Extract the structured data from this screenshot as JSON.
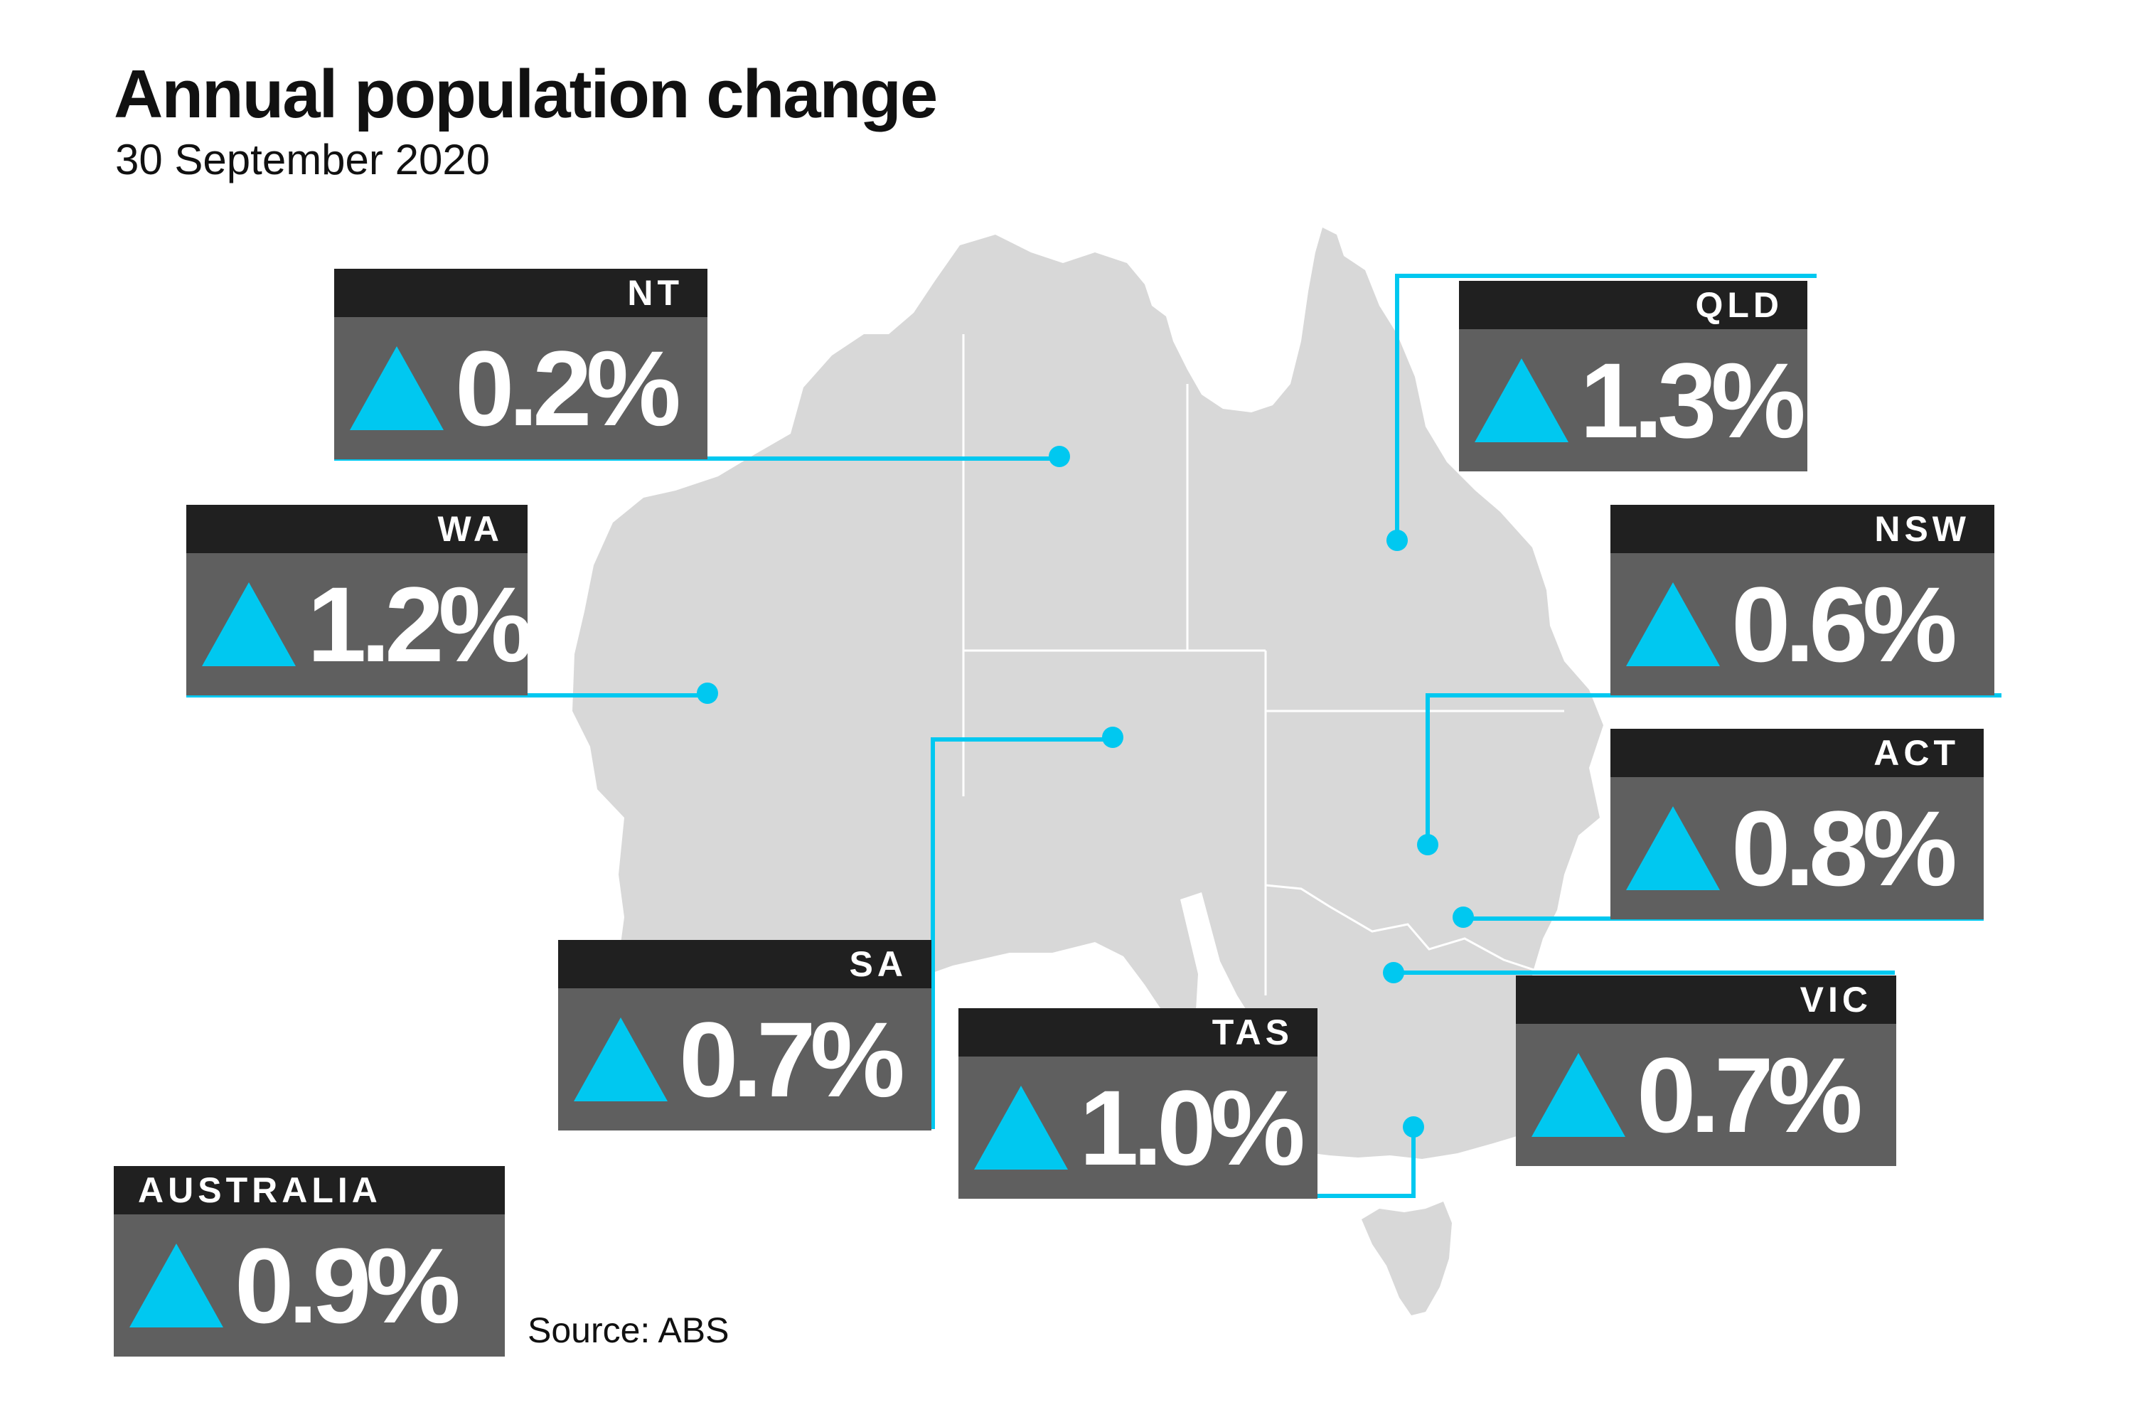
{
  "title": "Annual population change",
  "subtitle": "30 September 2020",
  "source": "Source: ABS",
  "colors": {
    "accent": "#00c8f0",
    "header_bg": "#202020",
    "value_bg": "#5f5f5f",
    "land": "#d8d8d8",
    "border": "#ffffff"
  },
  "indicator_icon": "up-triangle-icon",
  "regions": {
    "nt": {
      "label": "NT",
      "value": "0.2%"
    },
    "qld": {
      "label": "QLD",
      "value": "1.3%"
    },
    "wa": {
      "label": "WA",
      "value": "1.2%"
    },
    "nsw": {
      "label": "NSW",
      "value": "0.6%"
    },
    "act": {
      "label": "ACT",
      "value": "0.8%"
    },
    "sa": {
      "label": "SA",
      "value": "0.7%"
    },
    "tas": {
      "label": "TAS",
      "value": "1.0%"
    },
    "vic": {
      "label": "VIC",
      "value": "0.7%"
    }
  },
  "national": {
    "label": "AUSTRALIA",
    "value": "0.9%"
  }
}
